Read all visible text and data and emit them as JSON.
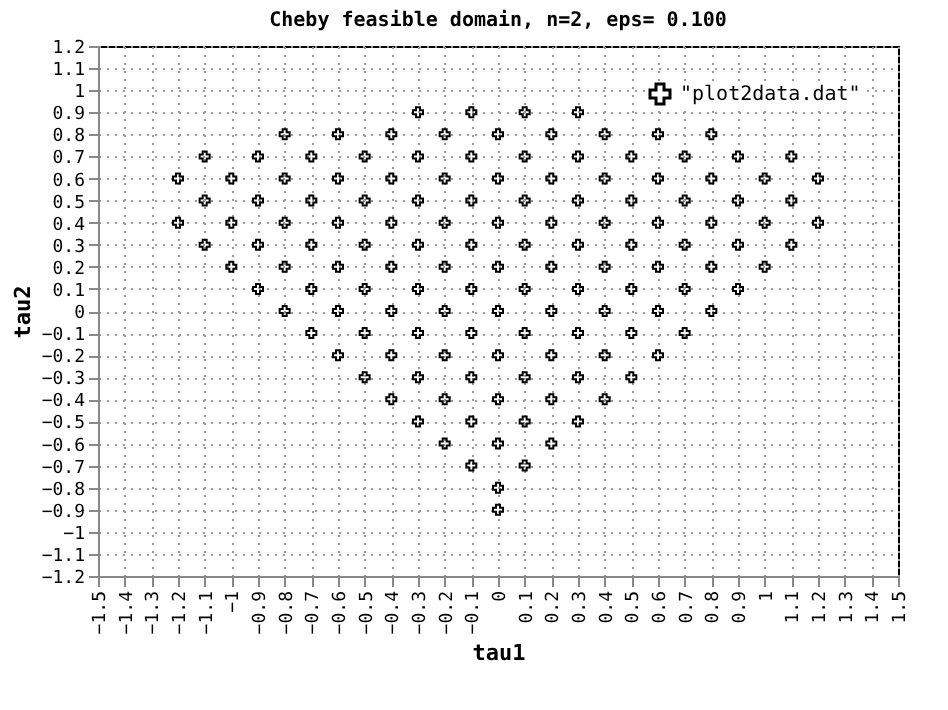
{
  "chart_data": {
    "type": "scatter",
    "title": "Cheby feasible domain, n=2, eps= 0.100",
    "xlabel": "tau1",
    "ylabel": "tau2",
    "series": [
      {
        "name": "\"plot2data.dat\"",
        "color": "#000000",
        "x": [
          -0.3,
          -0.1,
          0.1,
          0.3,
          -0.8,
          -0.6,
          -0.4,
          -0.2,
          0,
          0.2,
          0.4,
          0.6,
          0.8,
          -1.1,
          -0.9,
          -0.7,
          -0.5,
          -0.3,
          -0.1,
          0.1,
          0.3,
          0.5,
          0.7,
          0.9,
          1.1,
          -1.2,
          -1,
          -0.8,
          -0.6,
          -0.4,
          -0.2,
          0,
          0.2,
          0.4,
          0.6,
          0.8,
          1,
          1.2,
          -1.1,
          -0.9,
          -0.7,
          -0.5,
          -0.3,
          -0.1,
          0.1,
          0.3,
          0.5,
          0.7,
          0.9,
          1.1,
          -1.2,
          -1,
          -0.8,
          -0.6,
          -0.4,
          -0.2,
          0,
          0.2,
          0.4,
          0.6,
          0.8,
          1,
          1.2,
          -1.1,
          -0.9,
          -0.7,
          -0.5,
          -0.3,
          -0.1,
          0.1,
          0.3,
          0.5,
          0.7,
          0.9,
          1.1,
          -1,
          -0.8,
          -0.6,
          -0.4,
          -0.2,
          0,
          0.2,
          0.4,
          0.6,
          0.8,
          1,
          -0.9,
          -0.7,
          -0.5,
          -0.3,
          -0.1,
          0.1,
          0.3,
          0.5,
          0.7,
          0.9,
          -0.8,
          -0.6,
          -0.4,
          -0.2,
          0,
          0.2,
          0.4,
          0.6,
          0.8,
          -0.7,
          -0.5,
          -0.3,
          -0.1,
          0.1,
          0.3,
          0.5,
          0.7,
          -0.6,
          -0.4,
          -0.2,
          0,
          0.2,
          0.4,
          0.6,
          -0.5,
          -0.3,
          -0.1,
          0.1,
          0.3,
          0.5,
          -0.4,
          -0.2,
          0,
          0.2,
          0.4,
          -0.3,
          -0.1,
          0.1,
          0.3,
          -0.2,
          0,
          0.2,
          -0.1,
          0.1,
          0,
          0
        ],
        "values": [
          0.9,
          0.9,
          0.9,
          0.9,
          0.8,
          0.8,
          0.8,
          0.8,
          0.8,
          0.8,
          0.8,
          0.8,
          0.8,
          0.7,
          0.7,
          0.7,
          0.7,
          0.7,
          0.7,
          0.7,
          0.7,
          0.7,
          0.7,
          0.7,
          0.7,
          0.6,
          0.6,
          0.6,
          0.6,
          0.6,
          0.6,
          0.6,
          0.6,
          0.6,
          0.6,
          0.6,
          0.6,
          0.6,
          0.5,
          0.5,
          0.5,
          0.5,
          0.5,
          0.5,
          0.5,
          0.5,
          0.5,
          0.5,
          0.5,
          0.5,
          0.4,
          0.4,
          0.4,
          0.4,
          0.4,
          0.4,
          0.4,
          0.4,
          0.4,
          0.4,
          0.4,
          0.4,
          0.4,
          0.3,
          0.3,
          0.3,
          0.3,
          0.3,
          0.3,
          0.3,
          0.3,
          0.3,
          0.3,
          0.3,
          0.3,
          0.2,
          0.2,
          0.2,
          0.2,
          0.2,
          0.2,
          0.2,
          0.2,
          0.2,
          0.2,
          0.2,
          0.1,
          0.1,
          0.1,
          0.1,
          0.1,
          0.1,
          0.1,
          0.1,
          0.1,
          0.1,
          0,
          0,
          0,
          0,
          0,
          0,
          0,
          0,
          0,
          -0.1,
          -0.1,
          -0.1,
          -0.1,
          -0.1,
          -0.1,
          -0.1,
          -0.1,
          -0.2,
          -0.2,
          -0.2,
          -0.2,
          -0.2,
          -0.2,
          -0.2,
          -0.3,
          -0.3,
          -0.3,
          -0.3,
          -0.3,
          -0.3,
          -0.4,
          -0.4,
          -0.4,
          -0.4,
          -0.4,
          -0.5,
          -0.5,
          -0.5,
          -0.5,
          -0.6,
          -0.6,
          -0.6,
          -0.7,
          -0.7,
          -0.8,
          -0.9
        ]
      }
    ],
    "xlim": [
      -1.5,
      1.5
    ],
    "xticks": [
      -1.5,
      -1.4,
      -1.3,
      -1.2,
      -1.1,
      -1,
      -0.9,
      -0.8,
      -0.7,
      -0.6,
      -0.5,
      -0.4,
      -0.3,
      -0.2,
      -0.1,
      0,
      0.1,
      0.2,
      0.3,
      0.4,
      0.5,
      0.6,
      0.7,
      0.8,
      0.9,
      1,
      1.1,
      1.2,
      1.3,
      1.4,
      1.5
    ],
    "ylim": [
      -1.2,
      1.2
    ],
    "yticks": [
      -1.2,
      -1.1,
      -1,
      -0.9,
      -0.8,
      -0.7,
      -0.6,
      -0.5,
      -0.4,
      -0.3,
      -0.2,
      -0.1,
      0,
      0.1,
      0.2,
      0.3,
      0.4,
      0.5,
      0.6,
      0.7,
      0.8,
      0.9,
      1,
      1.1,
      1.2
    ],
    "grid": true,
    "legend": "top right",
    "marker": "cross"
  }
}
